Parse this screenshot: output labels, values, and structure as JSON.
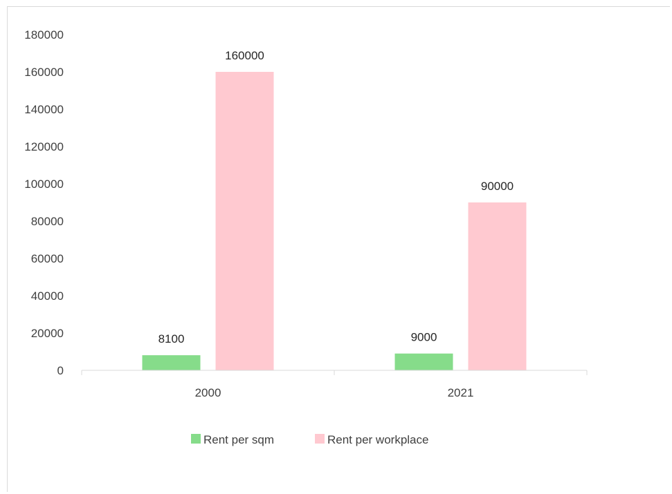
{
  "chart_data": {
    "type": "bar",
    "categories": [
      "2000",
      "2021"
    ],
    "series": [
      {
        "name": "Rent per sqm",
        "values": [
          8100,
          9000
        ],
        "color": "#86dc8a"
      },
      {
        "name": "Rent per workplace",
        "values": [
          160000,
          90000
        ],
        "color": "#ffc9d0"
      }
    ],
    "title": "",
    "xlabel": "",
    "ylabel": "",
    "ylim": [
      0,
      180000
    ],
    "yticks": [
      0,
      20000,
      40000,
      60000,
      80000,
      100000,
      120000,
      140000,
      160000,
      180000
    ],
    "grid": false,
    "legend_position": "bottom",
    "data_labels": true
  }
}
